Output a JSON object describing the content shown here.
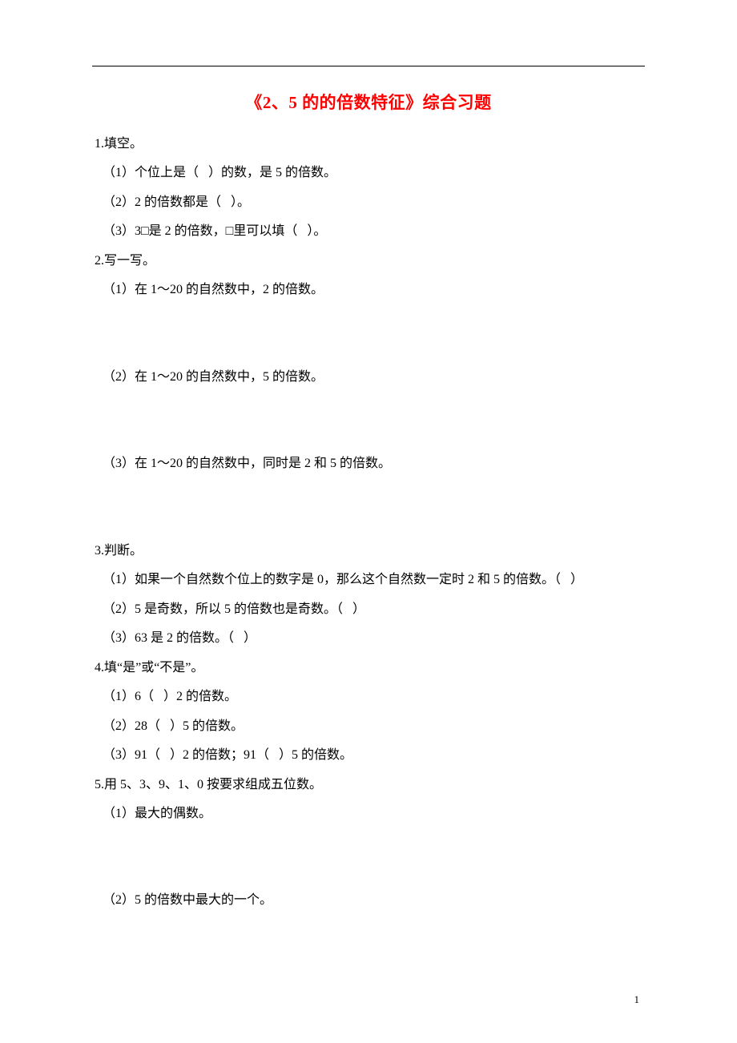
{
  "title": "《2、5 的的倍数特征》综合习题",
  "page_number": "1",
  "body": {
    "q1": {
      "head": "1.填空。",
      "a": "（1）个位上是（   ）的数，是 5 的倍数。",
      "b": "（2）2 的倍数都是（   ）。",
      "c": "（3）3□是 2 的倍数，□里可以填（   ）。"
    },
    "q2": {
      "head": "2.写一写。",
      "a": "（1）在 1～20 的自然数中，2 的倍数。",
      "b": "（2）在 1～20 的自然数中，5 的倍数。",
      "c": "（3）在 1～20 的自然数中，同时是 2 和 5 的倍数。"
    },
    "q3": {
      "head": "3.判断。",
      "a": "（1）如果一个自然数个位上的数字是 0，那么这个自然数一定时 2 和 5 的倍数。（   ）",
      "b": "（2）5 是奇数，所以 5 的倍数也是奇数。（   ）",
      "c": "（3）63 是 2 的倍数。（   ）"
    },
    "q4": {
      "head": "4.填“是”或“不是”。",
      "a": "（1）6（   ）2 的倍数。",
      "b": "（2）28（   ）5 的倍数。",
      "c": "（3）91（   ）2 的倍数；91（   ）5 的倍数。"
    },
    "q5": {
      "head": "5.用 5、3、9、1、0 按要求组成五位数。",
      "a": "（1）最大的偶数。",
      "b": "（2）5 的倍数中最大的一个。"
    }
  }
}
